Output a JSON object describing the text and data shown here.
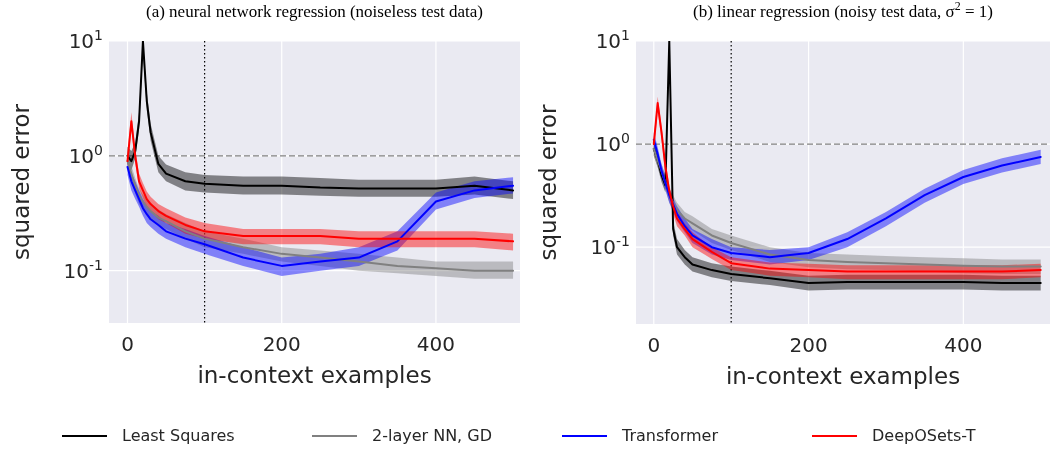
{
  "chart_data": [
    {
      "type": "line",
      "title": "(a) neural network regression (noiseless test data)",
      "xlabel": "in-context examples",
      "ylabel": "squared error",
      "log": "y",
      "grid": true,
      "legend": "bottom",
      "xlim": [
        -24,
        509
      ],
      "xticks": [
        0,
        200,
        400
      ],
      "ylim": [
        0.035,
        10
      ],
      "yticks": [
        {
          "value": 0.1,
          "label": "10$^{-1}$"
        },
        {
          "value": 1,
          "label": "10$^{0}$"
        },
        {
          "value": 10,
          "label": "10$^{1}$"
        }
      ],
      "ref_lines": [
        {
          "axis": "x",
          "value": 100,
          "label": null,
          "color": "#000000",
          "line_style": "dotted"
        },
        {
          "axis": "y",
          "value": 1,
          "label": null,
          "color": "#808080",
          "line_style": "dashed"
        }
      ],
      "x": [
        0,
        5,
        10,
        15,
        20,
        25,
        30,
        40,
        50,
        75,
        100,
        150,
        200,
        250,
        300,
        350,
        400,
        450,
        500
      ],
      "series": [
        {
          "name": "Least Squares",
          "color": "#000000",
          "values": [
            1.0,
            0.9,
            1.1,
            2.0,
            10,
            3.0,
            1.6,
            0.85,
            0.7,
            0.6,
            0.57,
            0.55,
            0.55,
            0.53,
            0.52,
            0.52,
            0.52,
            0.55,
            0.5
          ],
          "lower": [
            0.85,
            0.75,
            0.95,
            1.7,
            8,
            2.5,
            1.35,
            0.72,
            0.6,
            0.5,
            0.48,
            0.46,
            0.46,
            0.45,
            0.44,
            0.44,
            0.44,
            0.46,
            0.42
          ],
          "upper": [
            1.2,
            1.1,
            1.3,
            2.4,
            10,
            3.6,
            1.9,
            1.0,
            0.84,
            0.72,
            0.68,
            0.66,
            0.66,
            0.64,
            0.62,
            0.62,
            0.62,
            0.66,
            0.6
          ]
        },
        {
          "name": "2-layer NN, GD",
          "color": "#808080",
          "values": [
            0.9,
            0.7,
            0.55,
            0.45,
            0.4,
            0.36,
            0.33,
            0.29,
            0.27,
            0.22,
            0.19,
            0.16,
            0.14,
            0.13,
            0.12,
            0.11,
            0.105,
            0.1,
            0.1
          ],
          "lower": [
            0.78,
            0.6,
            0.47,
            0.38,
            0.34,
            0.31,
            0.28,
            0.25,
            0.23,
            0.19,
            0.16,
            0.14,
            0.12,
            0.11,
            0.1,
            0.095,
            0.09,
            0.085,
            0.085
          ],
          "upper": [
            1.05,
            0.82,
            0.64,
            0.52,
            0.46,
            0.42,
            0.38,
            0.34,
            0.31,
            0.26,
            0.22,
            0.19,
            0.16,
            0.15,
            0.14,
            0.13,
            0.12,
            0.12,
            0.12
          ]
        },
        {
          "name": "Transformer",
          "color": "#0000ff",
          "values": [
            0.8,
            0.6,
            0.5,
            0.42,
            0.35,
            0.31,
            0.28,
            0.25,
            0.22,
            0.19,
            0.17,
            0.13,
            0.11,
            0.12,
            0.13,
            0.18,
            0.4,
            0.5,
            0.55
          ],
          "lower": [
            0.68,
            0.5,
            0.42,
            0.36,
            0.3,
            0.26,
            0.24,
            0.21,
            0.19,
            0.16,
            0.14,
            0.11,
            0.09,
            0.1,
            0.11,
            0.15,
            0.34,
            0.43,
            0.47
          ],
          "upper": [
            0.95,
            0.7,
            0.6,
            0.5,
            0.42,
            0.37,
            0.33,
            0.3,
            0.26,
            0.23,
            0.2,
            0.16,
            0.13,
            0.14,
            0.16,
            0.22,
            0.48,
            0.6,
            0.65
          ]
        },
        {
          "name": "DeepOSets-T",
          "color": "#ff0000",
          "values": [
            0.9,
            2.0,
            1.0,
            0.6,
            0.5,
            0.42,
            0.38,
            0.33,
            0.3,
            0.25,
            0.22,
            0.2,
            0.2,
            0.2,
            0.19,
            0.19,
            0.19,
            0.19,
            0.18
          ],
          "lower": [
            0.78,
            1.7,
            0.86,
            0.52,
            0.43,
            0.36,
            0.33,
            0.28,
            0.26,
            0.21,
            0.19,
            0.17,
            0.17,
            0.17,
            0.16,
            0.16,
            0.16,
            0.16,
            0.15
          ],
          "upper": [
            1.05,
            2.4,
            1.15,
            0.7,
            0.58,
            0.49,
            0.44,
            0.38,
            0.35,
            0.29,
            0.26,
            0.23,
            0.23,
            0.23,
            0.22,
            0.22,
            0.22,
            0.22,
            0.21
          ]
        }
      ]
    },
    {
      "type": "line",
      "title": "(b) linear regression (noisy test data, σ$^{2}$ = 1)",
      "xlabel": "in-context examples",
      "ylabel": "squared error",
      "log": "y",
      "grid": true,
      "legend": "bottom",
      "xlim": [
        -23,
        512
      ],
      "xticks": [
        0,
        200,
        400
      ],
      "ylim": [
        0.018,
        10
      ],
      "yticks": [
        {
          "value": 0.1,
          "label": "10$^{-1}$"
        },
        {
          "value": 1,
          "label": "10$^{0}$"
        },
        {
          "value": 10,
          "label": "10$^{1}$"
        }
      ],
      "ref_lines": [
        {
          "axis": "x",
          "value": 100,
          "label": null,
          "color": "#000000",
          "line_style": "dotted"
        },
        {
          "axis": "y",
          "value": 1,
          "label": null,
          "color": "#808080",
          "line_style": "dashed"
        }
      ],
      "x": [
        0,
        5,
        10,
        15,
        20,
        25,
        30,
        40,
        50,
        75,
        100,
        150,
        200,
        250,
        300,
        350,
        400,
        450,
        500
      ],
      "series": [
        {
          "name": "Least Squares",
          "color": "#000000",
          "values": [
            0.9,
            0.7,
            0.5,
            0.4,
            10,
            0.15,
            0.1,
            0.08,
            0.068,
            0.06,
            0.055,
            0.05,
            0.045,
            0.046,
            0.046,
            0.046,
            0.046,
            0.045,
            0.045
          ],
          "lower": [
            0.77,
            0.6,
            0.43,
            0.34,
            8,
            0.13,
            0.085,
            0.068,
            0.058,
            0.051,
            0.047,
            0.043,
            0.038,
            0.039,
            0.039,
            0.039,
            0.039,
            0.038,
            0.038
          ],
          "upper": [
            1.05,
            0.82,
            0.58,
            0.47,
            10,
            0.18,
            0.12,
            0.094,
            0.08,
            0.07,
            0.065,
            0.059,
            0.053,
            0.054,
            0.054,
            0.054,
            0.054,
            0.053,
            0.053
          ]
        },
        {
          "name": "2-layer NN, GD",
          "color": "#808080",
          "values": [
            0.9,
            0.7,
            0.55,
            0.42,
            0.32,
            0.27,
            0.23,
            0.19,
            0.17,
            0.13,
            0.11,
            0.085,
            0.075,
            0.072,
            0.07,
            0.068,
            0.066,
            0.065,
            0.065
          ],
          "lower": [
            0.77,
            0.6,
            0.47,
            0.36,
            0.27,
            0.23,
            0.2,
            0.16,
            0.145,
            0.11,
            0.094,
            0.072,
            0.064,
            0.061,
            0.06,
            0.058,
            0.056,
            0.055,
            0.055
          ],
          "upper": [
            1.05,
            0.82,
            0.64,
            0.49,
            0.37,
            0.32,
            0.27,
            0.22,
            0.2,
            0.15,
            0.13,
            0.1,
            0.088,
            0.085,
            0.082,
            0.08,
            0.078,
            0.076,
            0.076
          ]
        },
        {
          "name": "Transformer",
          "color": "#0000ff",
          "values": [
            1.1,
            0.8,
            0.55,
            0.42,
            0.32,
            0.26,
            0.21,
            0.16,
            0.13,
            0.1,
            0.088,
            0.08,
            0.088,
            0.12,
            0.19,
            0.32,
            0.48,
            0.62,
            0.75
          ],
          "lower": [
            0.94,
            0.68,
            0.47,
            0.36,
            0.27,
            0.22,
            0.18,
            0.14,
            0.11,
            0.085,
            0.075,
            0.068,
            0.075,
            0.1,
            0.16,
            0.27,
            0.41,
            0.53,
            0.64
          ],
          "upper": [
            1.3,
            0.94,
            0.64,
            0.49,
            0.37,
            0.3,
            0.25,
            0.19,
            0.15,
            0.12,
            0.1,
            0.094,
            0.1,
            0.14,
            0.22,
            0.37,
            0.56,
            0.73,
            0.88
          ]
        },
        {
          "name": "DeepOSets-T",
          "color": "#ff0000",
          "values": [
            1.0,
            2.5,
            1.3,
            0.6,
            0.35,
            0.25,
            0.19,
            0.15,
            0.12,
            0.09,
            0.07,
            0.062,
            0.06,
            0.058,
            0.058,
            0.058,
            0.058,
            0.058,
            0.06
          ],
          "lower": [
            0.85,
            2.1,
            1.1,
            0.51,
            0.3,
            0.21,
            0.16,
            0.13,
            0.1,
            0.077,
            0.06,
            0.053,
            0.051,
            0.049,
            0.049,
            0.049,
            0.049,
            0.049,
            0.051
          ],
          "upper": [
            1.15,
            2.9,
            1.5,
            0.7,
            0.4,
            0.29,
            0.22,
            0.17,
            0.14,
            0.1,
            0.08,
            0.071,
            0.069,
            0.067,
            0.067,
            0.067,
            0.067,
            0.067,
            0.069
          ]
        }
      ]
    }
  ]
}
